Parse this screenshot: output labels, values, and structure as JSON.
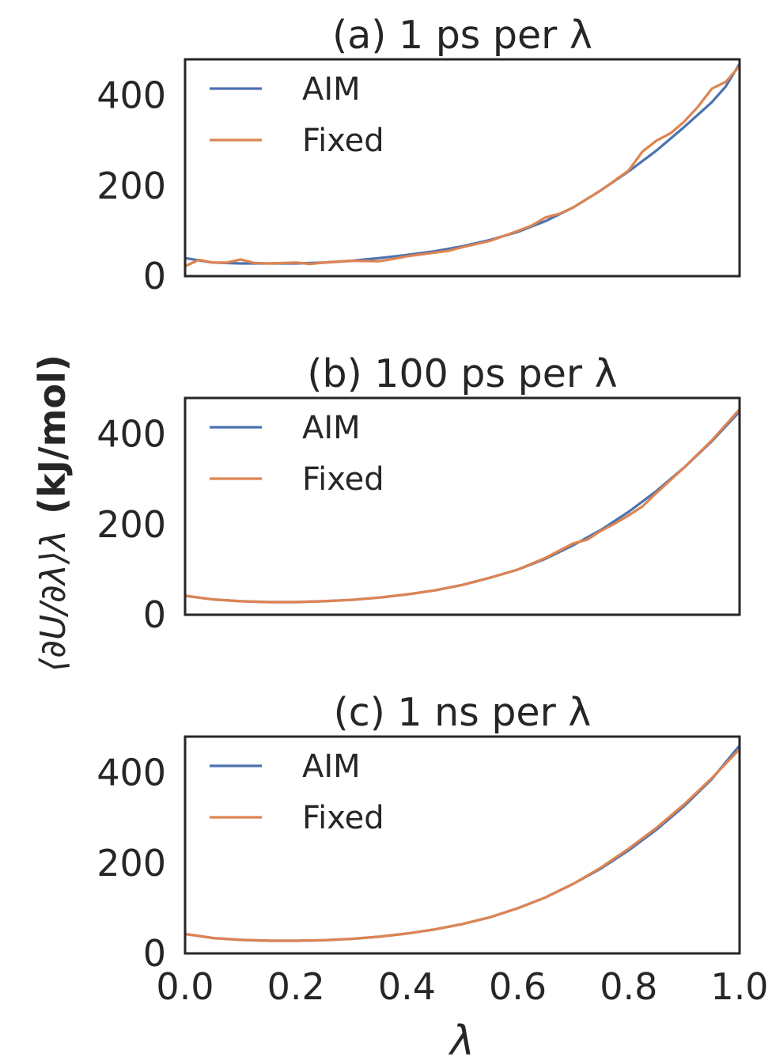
{
  "colors": {
    "AIM": "#4c72b0",
    "Fixed": "#dd8452",
    "axes": "#262626"
  },
  "chart_data": [
    {
      "type": "line",
      "title": "(a) 1 ps per λ",
      "xlim": [
        0,
        1
      ],
      "ylim": [
        0,
        480
      ],
      "yticks": [
        "0",
        "200",
        "400"
      ],
      "grid": false,
      "legend_position": "upper-left",
      "series": [
        {
          "name": "AIM",
          "x": [
            0,
            0.05,
            0.1,
            0.15,
            0.2,
            0.25,
            0.3,
            0.35,
            0.4,
            0.45,
            0.5,
            0.55,
            0.6,
            0.65,
            0.7,
            0.75,
            0.8,
            0.85,
            0.9,
            0.95,
            0.975,
            1.0
          ],
          "y": [
            40,
            30,
            28,
            28,
            28,
            30,
            34,
            40,
            47,
            55,
            66,
            80,
            98,
            122,
            152,
            190,
            232,
            278,
            330,
            385,
            420,
            470
          ]
        },
        {
          "name": "Fixed",
          "x": [
            0,
            0.025,
            0.05,
            0.075,
            0.1,
            0.125,
            0.15,
            0.2,
            0.225,
            0.25,
            0.3,
            0.35,
            0.375,
            0.4,
            0.45,
            0.475,
            0.5,
            0.55,
            0.6,
            0.625,
            0.65,
            0.675,
            0.7,
            0.75,
            0.775,
            0.8,
            0.825,
            0.85,
            0.875,
            0.9,
            0.925,
            0.95,
            0.975,
            1.0
          ],
          "y": [
            22,
            36,
            30,
            30,
            37,
            29,
            28,
            30,
            27,
            30,
            34,
            33,
            38,
            44,
            52,
            56,
            64,
            78,
            100,
            112,
            130,
            138,
            152,
            190,
            212,
            234,
            276,
            300,
            316,
            342,
            375,
            415,
            430,
            465
          ]
        }
      ]
    },
    {
      "type": "line",
      "title": "(b) 100 ps per λ",
      "xlim": [
        0,
        1
      ],
      "ylim": [
        0,
        480
      ],
      "yticks": [
        "0",
        "200",
        "400"
      ],
      "grid": false,
      "legend_position": "upper-left",
      "series": [
        {
          "name": "AIM",
          "x": [
            0,
            0.05,
            0.1,
            0.15,
            0.2,
            0.25,
            0.3,
            0.35,
            0.4,
            0.45,
            0.5,
            0.55,
            0.6,
            0.65,
            0.7,
            0.75,
            0.8,
            0.85,
            0.9,
            0.95,
            1.0
          ],
          "y": [
            42,
            34,
            30,
            28,
            28,
            30,
            33,
            38,
            45,
            54,
            66,
            82,
            100,
            124,
            154,
            188,
            228,
            274,
            326,
            384,
            450
          ]
        },
        {
          "name": "Fixed",
          "x": [
            0,
            0.05,
            0.1,
            0.15,
            0.2,
            0.25,
            0.3,
            0.35,
            0.4,
            0.45,
            0.5,
            0.55,
            0.6,
            0.65,
            0.7,
            0.725,
            0.75,
            0.775,
            0.8,
            0.825,
            0.85,
            0.9,
            0.95,
            1.0
          ],
          "y": [
            42,
            34,
            30,
            28,
            28,
            30,
            33,
            38,
            45,
            54,
            66,
            82,
            100,
            126,
            158,
            166,
            186,
            202,
            220,
            240,
            270,
            326,
            386,
            455
          ]
        }
      ]
    },
    {
      "type": "line",
      "title": "(c) 1 ns per λ",
      "xlim": [
        0,
        1
      ],
      "ylim": [
        0,
        480
      ],
      "yticks": [
        "0",
        "200",
        "400"
      ],
      "xticks": [
        "0.0",
        "0.2",
        "0.4",
        "0.6",
        "0.8",
        "1.0"
      ],
      "xlabel": "λ",
      "grid": false,
      "legend_position": "upper-left",
      "series": [
        {
          "name": "AIM",
          "x": [
            0,
            0.05,
            0.1,
            0.15,
            0.2,
            0.25,
            0.3,
            0.35,
            0.4,
            0.45,
            0.5,
            0.55,
            0.6,
            0.65,
            0.7,
            0.75,
            0.8,
            0.85,
            0.9,
            0.95,
            1.0
          ],
          "y": [
            43,
            34,
            30,
            28,
            28,
            29,
            32,
            37,
            44,
            53,
            65,
            80,
            100,
            124,
            154,
            188,
            228,
            274,
            326,
            386,
            460
          ]
        },
        {
          "name": "Fixed",
          "x": [
            0,
            0.05,
            0.1,
            0.15,
            0.2,
            0.25,
            0.3,
            0.35,
            0.4,
            0.45,
            0.5,
            0.55,
            0.6,
            0.65,
            0.7,
            0.75,
            0.8,
            0.85,
            0.9,
            0.95,
            1.0
          ],
          "y": [
            43,
            34,
            30,
            28,
            28,
            29,
            32,
            37,
            44,
            53,
            65,
            80,
            100,
            124,
            154,
            190,
            232,
            278,
            330,
            388,
            452
          ]
        }
      ]
    }
  ],
  "shared_ylabel": {
    "expression": "⟨∂U/∂λ⟩λ",
    "unit": "(kJ/mol)"
  }
}
